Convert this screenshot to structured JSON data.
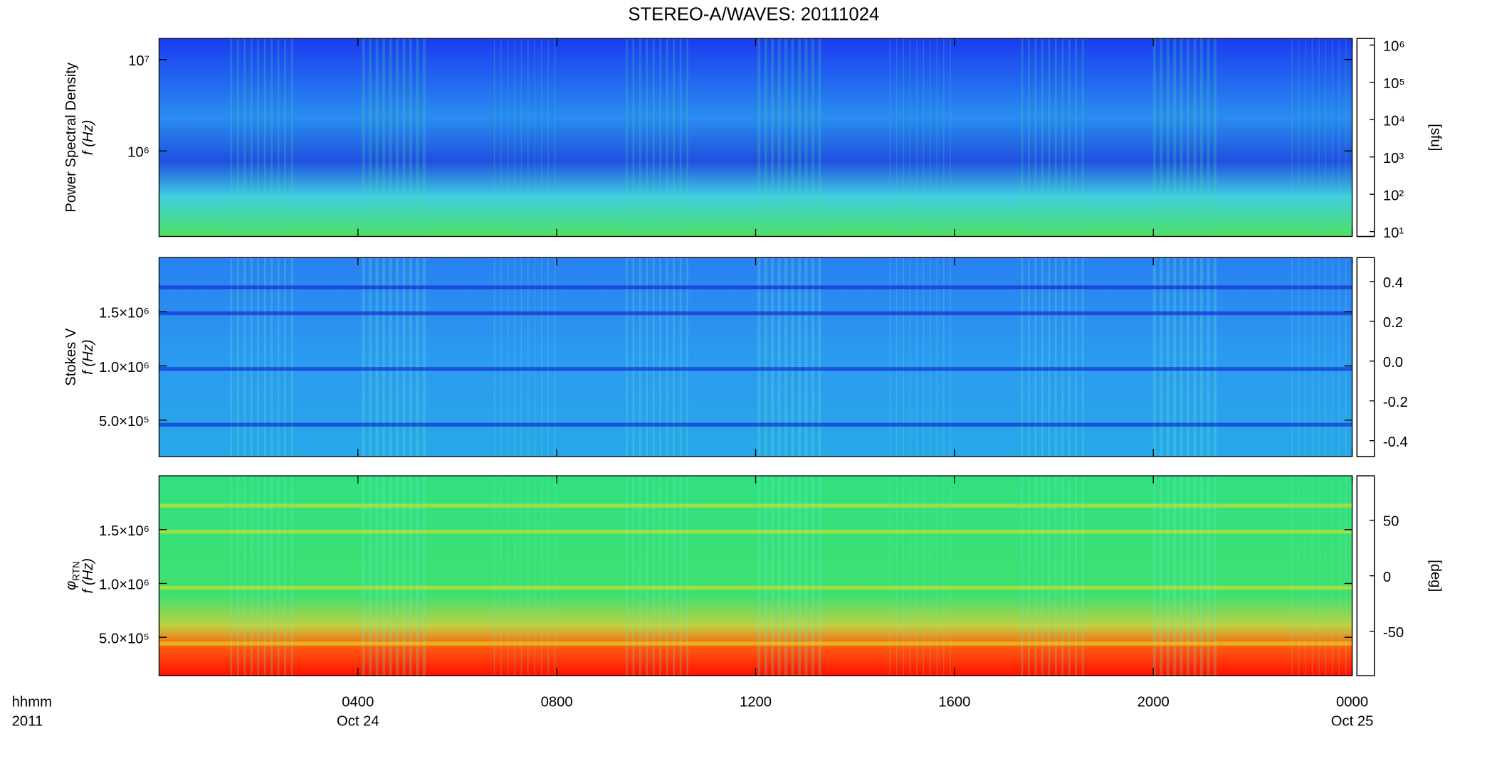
{
  "chart_data": [
    {
      "type": "heatmap",
      "title": "STEREO-A/WAVES: 20111024",
      "ylabel": "Power Spectral Density",
      "ylabel2": "f (Hz)",
      "ylog": true,
      "ylim": [
        116000,
        17000000
      ],
      "yticks": [
        {
          "value": 1000000,
          "label": "10⁶"
        },
        {
          "value": 10000000,
          "label": "10⁷"
        }
      ],
      "xlim": [
        0,
        24
      ],
      "xticks": [
        4,
        8,
        12,
        16,
        20,
        24
      ],
      "colorbar": {
        "label": "[sfu]",
        "log": true,
        "lim": [
          7.4,
          1500000
        ],
        "ticks": [
          {
            "value": 10,
            "label": "10¹"
          },
          {
            "value": 100,
            "label": "10²"
          },
          {
            "value": 1000,
            "label": "10³"
          },
          {
            "value": 10000,
            "label": "10⁴"
          },
          {
            "value": 100000,
            "label": "10⁵"
          },
          {
            "value": 1000000,
            "label": "10⁶"
          }
        ]
      }
    },
    {
      "type": "heatmap",
      "ylabel": "Stokes V",
      "ylabel2": "f (Hz)",
      "ylog": false,
      "ylim": [
        164000,
        2000000
      ],
      "yticks": [
        {
          "value": 500000,
          "label": "5.0×10⁵"
        },
        {
          "value": 1000000,
          "label": "1.0×10⁶"
        },
        {
          "value": 1500000,
          "label": "1.5×10⁶"
        }
      ],
      "xlim": [
        0,
        24
      ],
      "xticks": [
        4,
        8,
        12,
        16,
        20,
        24
      ],
      "colorbar": {
        "log": false,
        "lim": [
          -0.48,
          0.52
        ],
        "ticks": [
          -0.4,
          -0.2,
          {
            "value": 0,
            "label": "0.0"
          },
          0.2,
          0.4
        ]
      }
    },
    {
      "type": "heatmap",
      "ylabel": "φ",
      "ylabel_sub": "RTN",
      "ylabel2": "f (Hz)",
      "ylog": false,
      "ylim": [
        143000,
        2000000
      ],
      "yticks": [
        {
          "value": 500000,
          "label": "5.0×10⁵"
        },
        {
          "value": 1000000,
          "label": "1.0×10⁶"
        },
        {
          "value": 1500000,
          "label": "1.5×10⁶"
        }
      ],
      "xlim": [
        0,
        24
      ],
      "xlabel": "hhmm",
      "xlabel2": "2011",
      "xticks": [
        {
          "value": 4,
          "label": "0400"
        },
        {
          "value": 8,
          "label": "0800"
        },
        {
          "value": 12,
          "label": "1200"
        },
        {
          "value": 16,
          "label": "1600"
        },
        {
          "value": 20,
          "label": "2000"
        },
        {
          "value": 24,
          "label": "0000"
        }
      ],
      "xtick_dates": [
        {
          "value": 4,
          "label": "Oct 24"
        },
        {
          "value": 24,
          "label": "Oct 25"
        }
      ],
      "colorbar": {
        "label": "[deg]",
        "log": false,
        "lim": [
          -90,
          90
        ],
        "ticks": [
          -50,
          0,
          50
        ]
      }
    }
  ]
}
